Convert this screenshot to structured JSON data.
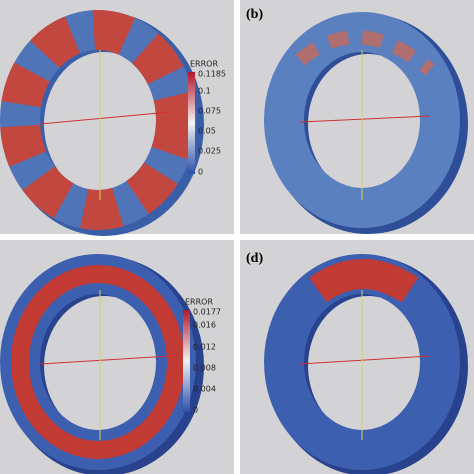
{
  "panels": [
    {
      "colorbar": {
        "title": "ERROR",
        "ticks": [
          "0.1185",
          "0.1",
          "0.075",
          "0.05",
          "0.025",
          "0"
        ]
      }
    },
    {
      "label": "(b)"
    },
    {
      "colorbar": {
        "title": "ERROR",
        "ticks": [
          "0.0177",
          "0.016",
          "0.012",
          "0.008",
          "0.004",
          "0"
        ]
      }
    },
    {
      "label": "(d)"
    }
  ]
}
